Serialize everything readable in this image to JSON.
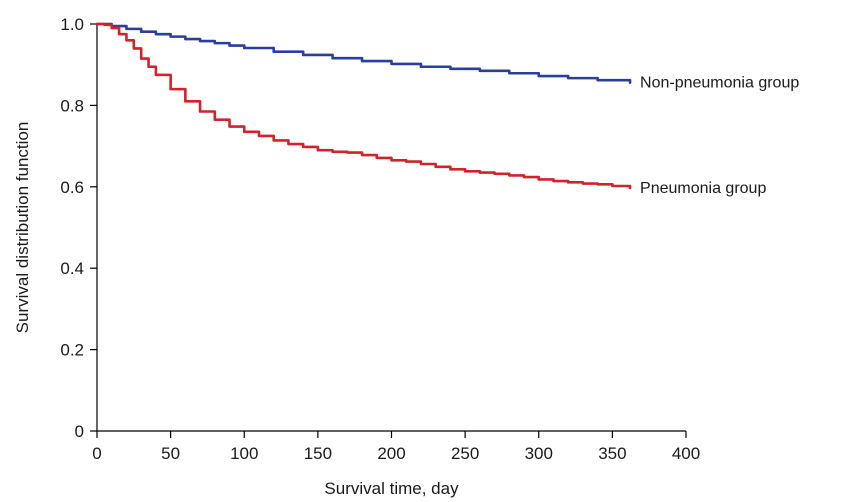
{
  "chart_data": {
    "type": "line",
    "title": "",
    "xlabel": "Survival time, day",
    "ylabel": "Survival distribution function",
    "xlim": [
      0,
      400
    ],
    "ylim": [
      0,
      1.0
    ],
    "x_ticks": [
      0,
      50,
      100,
      150,
      200,
      250,
      300,
      350,
      400
    ],
    "x_tick_labels": [
      "0",
      "50",
      "100",
      "150",
      "200",
      "250",
      "300",
      "350",
      "400"
    ],
    "y_ticks": [
      0,
      0.2,
      0.4,
      0.6,
      0.8,
      1.0
    ],
    "y_tick_labels": [
      "0",
      "0.2",
      "0.4",
      "0.6",
      "0.8",
      "1.0"
    ],
    "grid": false,
    "legend": "inline labels at line ends",
    "series": [
      {
        "name": "Non-pneumonia group",
        "color": "#2a3f9c",
        "x": [
          0,
          10,
          20,
          30,
          40,
          50,
          60,
          70,
          80,
          90,
          100,
          120,
          140,
          160,
          180,
          200,
          220,
          240,
          260,
          280,
          300,
          320,
          340,
          362
        ],
        "y": [
          1.0,
          0.995,
          0.988,
          0.981,
          0.975,
          0.969,
          0.963,
          0.958,
          0.953,
          0.947,
          0.941,
          0.932,
          0.924,
          0.916,
          0.909,
          0.902,
          0.895,
          0.89,
          0.885,
          0.879,
          0.872,
          0.867,
          0.862,
          0.856
        ]
      },
      {
        "name": "Pneumonia group",
        "color": "#d1232a",
        "x": [
          0,
          5,
          10,
          15,
          20,
          25,
          30,
          35,
          40,
          50,
          60,
          70,
          80,
          90,
          100,
          110,
          120,
          130,
          140,
          150,
          160,
          170,
          180,
          190,
          200,
          210,
          220,
          230,
          240,
          250,
          260,
          270,
          280,
          290,
          300,
          310,
          320,
          330,
          340,
          350,
          362
        ],
        "y": [
          1.0,
          0.998,
          0.99,
          0.975,
          0.96,
          0.94,
          0.915,
          0.895,
          0.875,
          0.84,
          0.81,
          0.785,
          0.765,
          0.748,
          0.735,
          0.725,
          0.714,
          0.705,
          0.698,
          0.69,
          0.686,
          0.684,
          0.678,
          0.671,
          0.665,
          0.662,
          0.656,
          0.649,
          0.643,
          0.638,
          0.635,
          0.632,
          0.628,
          0.624,
          0.618,
          0.614,
          0.611,
          0.608,
          0.606,
          0.602,
          0.597
        ]
      }
    ]
  }
}
